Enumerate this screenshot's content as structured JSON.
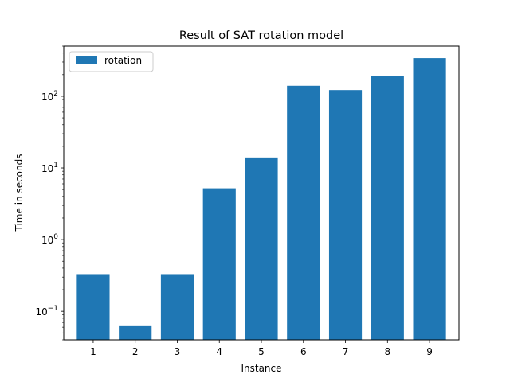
{
  "chart_data": {
    "type": "bar",
    "title": "Result of SAT rotation model",
    "xlabel": "Instance",
    "ylabel": "Time in seconds",
    "yscale": "log",
    "ylim": [
      0.04,
      500
    ],
    "categories": [
      "1",
      "2",
      "3",
      "4",
      "5",
      "6",
      "7",
      "8",
      "9"
    ],
    "series": [
      {
        "name": "rotation",
        "color": "#1f77b4",
        "values": [
          0.33,
          0.062,
          0.33,
          5.2,
          14.0,
          140.0,
          122.0,
          190.0,
          340.0
        ]
      }
    ],
    "y_ticks": [
      {
        "base": "10",
        "exp": "−1",
        "value": 0.1
      },
      {
        "base": "10",
        "exp": "0",
        "value": 1
      },
      {
        "base": "10",
        "exp": "1",
        "value": 10
      },
      {
        "base": "10",
        "exp": "2",
        "value": 100
      }
    ],
    "legend_position": "top-left",
    "grid": false
  }
}
